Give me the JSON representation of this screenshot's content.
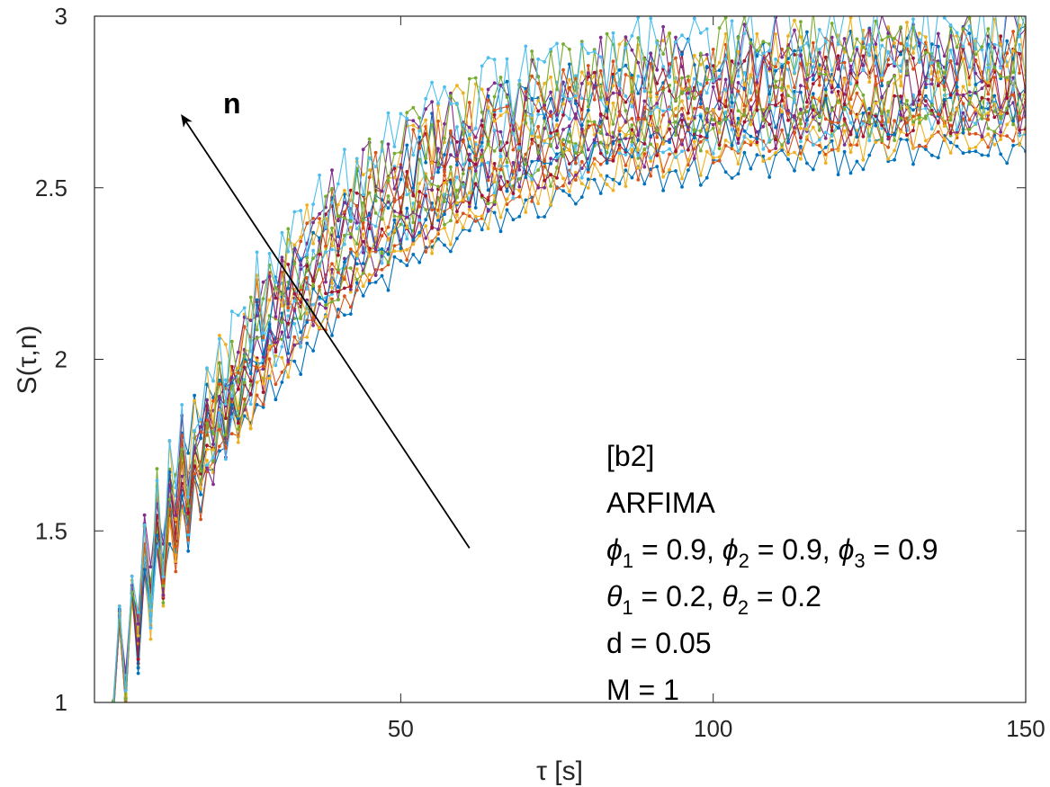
{
  "chart_data": {
    "type": "line",
    "title": "",
    "xlabel": "τ [s]",
    "ylabel": "S(τ,n)",
    "xlim": [
      1,
      150
    ],
    "ylim": [
      1,
      3
    ],
    "xticks": [
      50,
      100,
      150
    ],
    "yticks": [
      1,
      1.5,
      2,
      2.5,
      3
    ],
    "xtick_labels": [
      "50",
      "100",
      "150"
    ],
    "ytick_labels": [
      "1",
      "1.5",
      "2",
      "2.5",
      "3"
    ],
    "grid": false,
    "markers": "dot",
    "series_description": "20 noisy curves, one per n; S rises from ~1 at small τ toward ~2.6–3.0 by τ=150, higher n above",
    "series_count": 20,
    "series_colors": [
      "#0072BD",
      "#D95319",
      "#EDB120",
      "#7E2F8E",
      "#77AC30",
      "#4DBEEE",
      "#A2142F"
    ],
    "series_template": {
      "start": 1.0,
      "plateau_low_n": 2.65,
      "plateau_high_n": 2.95,
      "noise_low_n": 0.05,
      "noise_high_n": 0.12
    },
    "arrow_label": "n",
    "arrow": {
      "from": [
        61,
        1.45
      ],
      "to": [
        15,
        2.71
      ]
    },
    "annotation_lines": [
      {
        "parts": [
          {
            "t": "[b2]"
          }
        ]
      },
      {
        "parts": [
          {
            "t": "ARFIMA"
          }
        ]
      },
      {
        "parts": [
          {
            "t": "ϕ",
            "i": true
          },
          {
            "t": "1",
            "sub": true
          },
          {
            "t": " = 0.9, "
          },
          {
            "t": "ϕ",
            "i": true
          },
          {
            "t": "2",
            "sub": true
          },
          {
            "t": " = 0.9, "
          },
          {
            "t": "ϕ",
            "i": true
          },
          {
            "t": "3",
            "sub": true
          },
          {
            "t": " = 0.9"
          }
        ]
      },
      {
        "parts": [
          {
            "t": "θ",
            "i": true
          },
          {
            "t": "1",
            "sub": true
          },
          {
            "t": " = 0.2, "
          },
          {
            "t": "θ",
            "i": true
          },
          {
            "t": "2",
            "sub": true
          },
          {
            "t": " = 0.2"
          }
        ]
      },
      {
        "parts": [
          {
            "t": "d = 0.05"
          }
        ]
      },
      {
        "parts": [
          {
            "t": "M = 1"
          }
        ]
      }
    ]
  }
}
